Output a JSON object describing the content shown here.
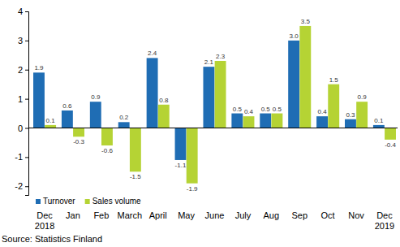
{
  "chart_data": {
    "type": "bar",
    "categories": [
      "Dec\n2018",
      "Jan",
      "Feb",
      "March",
      "April",
      "May",
      "June",
      "July",
      "Aug",
      "Sep",
      "Oct",
      "Nov",
      "Dec\n2019"
    ],
    "series": [
      {
        "name": "Turnover",
        "color": "#1f6db4",
        "values": [
          1.9,
          0.6,
          0.9,
          0.2,
          2.4,
          -1.1,
          2.1,
          0.5,
          0.5,
          3.0,
          0.4,
          0.3,
          0.1
        ],
        "value_labels": [
          "1.9",
          "0.6",
          "0.9",
          "0.2",
          "2.4",
          "-1.1",
          "2.1",
          "0.5",
          "0.5",
          "3.0",
          "0.4",
          "0.3",
          "0.1"
        ]
      },
      {
        "name": "Sales volume",
        "color": "#b5d334",
        "values": [
          0.1,
          -0.3,
          -0.6,
          -1.5,
          0.8,
          -1.9,
          2.3,
          0.4,
          0.5,
          3.5,
          1.5,
          0.9,
          -0.4
        ],
        "value_labels": [
          "0.1",
          "-0.3",
          "-0.6",
          "-1.5",
          "0.8",
          "-1.9",
          "2.3",
          "0.4",
          "0.5",
          "3.5",
          "1.5",
          "0.9",
          "-0.4"
        ]
      }
    ],
    "ylim": [
      -2.3,
      4
    ],
    "yticks": [
      -2,
      -1,
      0,
      1,
      2,
      3,
      4
    ],
    "grid": false,
    "data_labels": true,
    "legend": "bottom-left",
    "annotations": [
      "Source: Statistics Finland"
    ]
  }
}
